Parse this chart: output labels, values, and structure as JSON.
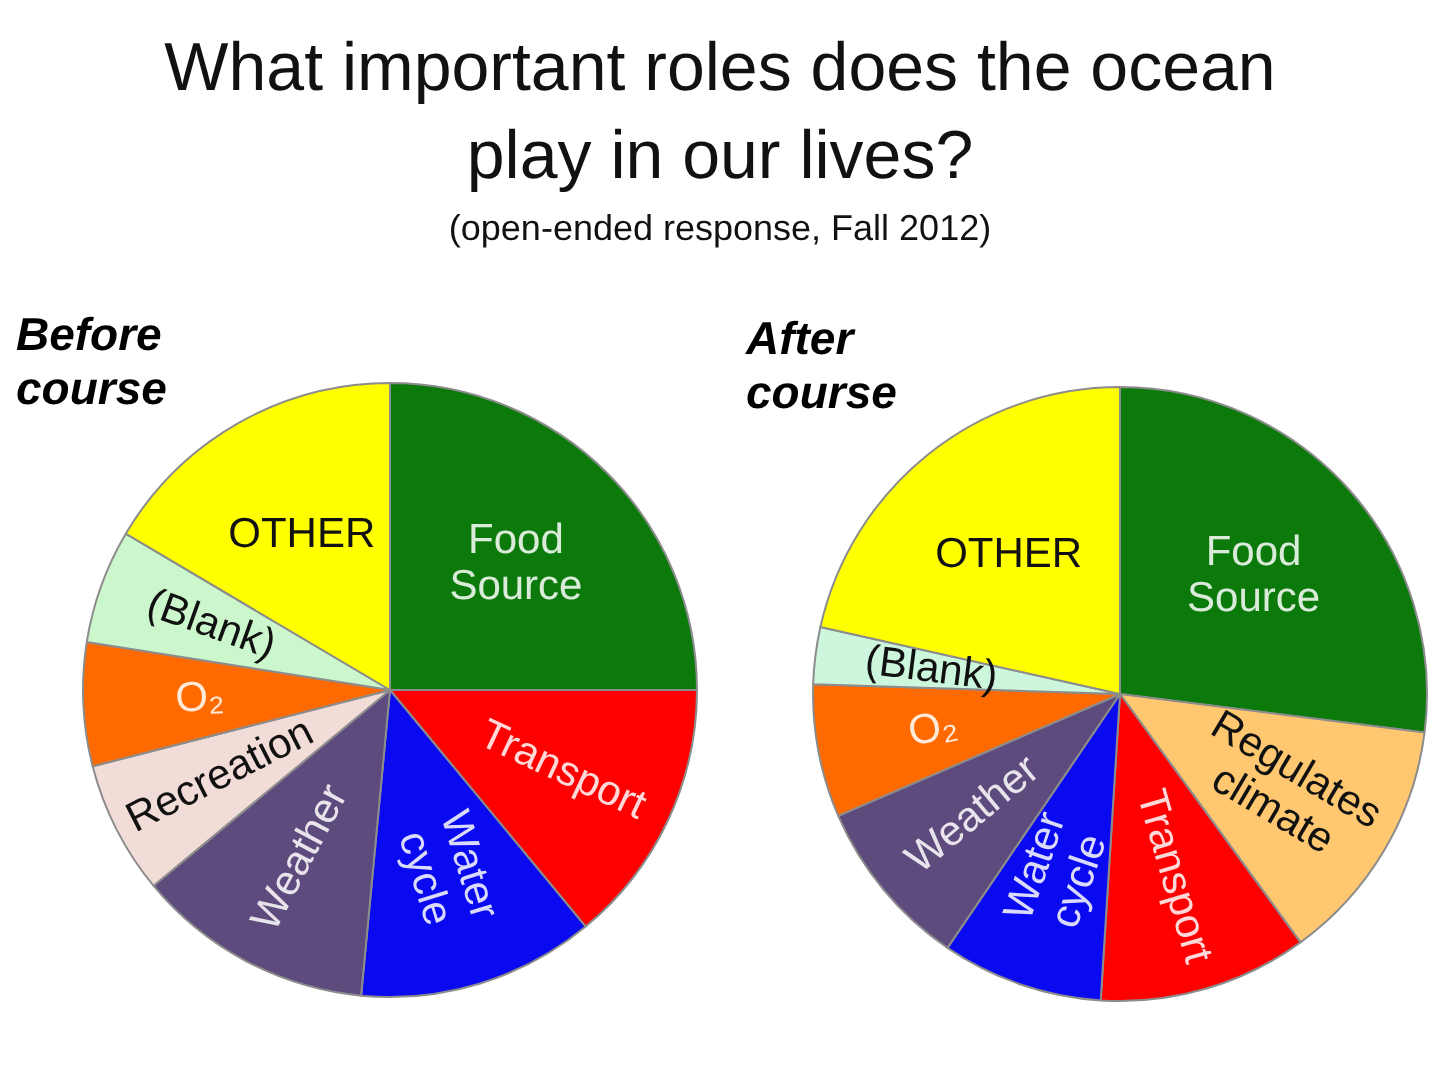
{
  "chart_data": [
    {
      "type": "other",
      "title": "What important roles does the ocean play in our lives?",
      "subtitle": "(open-ended response, Fall 2012)"
    },
    {
      "type": "pie",
      "title": "Before course",
      "categories": [
        "Food Source",
        "Transport",
        "Water cycle",
        "Weather",
        "Recreation",
        "O₂",
        "(Blank)",
        "OTHER"
      ],
      "values": [
        25,
        14,
        12.5,
        12.5,
        7,
        6.5,
        6,
        16.5
      ],
      "colors": [
        "#0b7a0b",
        "#ff0000",
        "#0a0af0",
        "#5e4b7e",
        "#f2dcd8",
        "#ff6a00",
        "#ccf7cc",
        "#ffff00"
      ]
    },
    {
      "type": "pie",
      "title": "After course",
      "categories": [
        "Food Source",
        "Regulates climate",
        "Transport",
        "Water cycle",
        "Weather",
        "O₂",
        "(Blank)",
        "OTHER"
      ],
      "values": [
        27,
        13,
        11,
        8.5,
        9,
        7,
        3,
        21.5
      ],
      "colors": [
        "#0b7a0b",
        "#ffc870",
        "#ff0000",
        "#0a0af0",
        "#5e4b7e",
        "#ff6a00",
        "#ccf7dd",
        "#ffff00"
      ]
    }
  ]
}
